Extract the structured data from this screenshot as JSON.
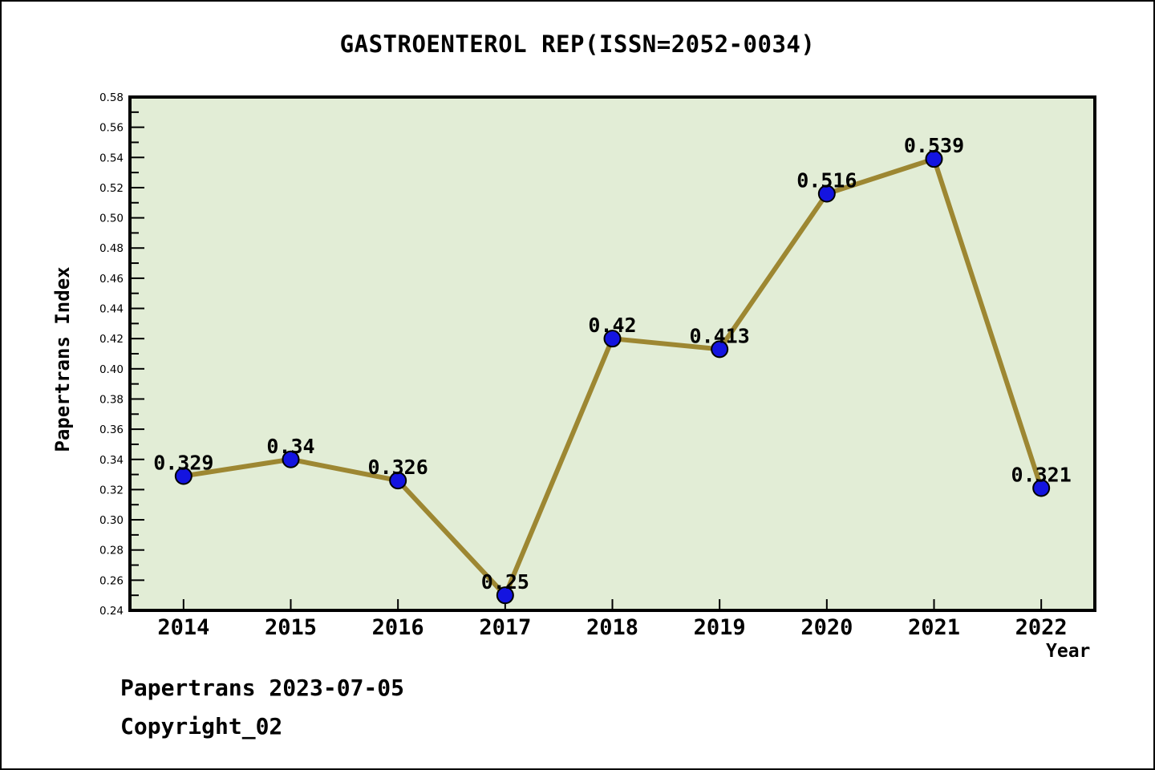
{
  "page": {
    "title": "GASTROENTEROL REP(ISSN=2052-0034)",
    "footer_line1": "Papertrans 2023-07-05",
    "footer_line2": "Copyright_02"
  },
  "chart_data": {
    "type": "line",
    "title": "GASTROENTEROL REP(ISSN=2052-0034)",
    "xlabel": "Year",
    "ylabel": "Papertrans Index",
    "categories": [
      "2014",
      "2015",
      "2016",
      "2017",
      "2018",
      "2019",
      "2020",
      "2021",
      "2022"
    ],
    "values": [
      0.329,
      0.34,
      0.326,
      0.25,
      0.42,
      0.413,
      0.516,
      0.539,
      0.321
    ],
    "point_labels": [
      "0.329",
      "0.34",
      "0.326",
      "0.25",
      "0.42",
      "0.413",
      "0.516",
      "0.539",
      "0.321"
    ],
    "ylim": [
      0.24,
      0.58
    ],
    "ytick_step": 0.02,
    "yminor_step": 0.01,
    "grid": "off",
    "legend": "none",
    "colors": {
      "line": "#9d8732",
      "marker": "#1414e0",
      "marker_edge": "#000000",
      "plot_background": "#e2edd6",
      "axis": "#000000",
      "text": "#000000"
    }
  }
}
